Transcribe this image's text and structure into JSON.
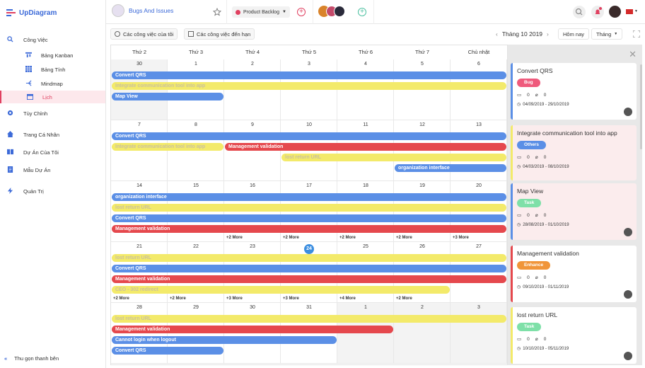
{
  "app": {
    "name": "UpDiagram",
    "project": "Bugs And Issues",
    "backlog": "Product Backlog"
  },
  "sidebar": {
    "items": [
      {
        "label": "Công Việc",
        "icon": "search-icon"
      },
      {
        "label": "Bảng Kanban",
        "icon": "kanban-icon"
      },
      {
        "label": "Bảng Tính",
        "icon": "grid-icon"
      },
      {
        "label": "Mindmap",
        "icon": "mindmap-icon"
      },
      {
        "label": "Lịch",
        "icon": "calendar-icon"
      },
      {
        "label": "Tùy Chỉnh",
        "icon": "gear-icon"
      },
      {
        "label": "Trang Cá Nhân",
        "icon": "home-icon"
      },
      {
        "label": "Dự Án Của Tôi",
        "icon": "book-icon"
      },
      {
        "label": "Mẫu Dự Án",
        "icon": "template-icon"
      },
      {
        "label": "Quản Trị",
        "icon": "bolt-icon"
      }
    ],
    "collapse": "Thu gọn thanh bên",
    "collapse_icon": "«"
  },
  "toolbar": {
    "my_tasks": "Các công việc của tôi",
    "due_tasks": "Các công việc đến hạn",
    "month": "Tháng 10 2019",
    "today": "Hôm nay",
    "view": "Tháng"
  },
  "calendar": {
    "dow": [
      "Thứ 2",
      "Thứ 3",
      "Thứ 4",
      "Thứ 5",
      "Thứ 6",
      "Thứ 7",
      "Chủ nhật"
    ],
    "weeks": [
      [
        "30",
        "1",
        "2",
        "3",
        "4",
        "5",
        "6"
      ],
      [
        "7",
        "8",
        "9",
        "10",
        "11",
        "12",
        "13"
      ],
      [
        "14",
        "15",
        "16",
        "17",
        "18",
        "19",
        "20"
      ],
      [
        "21",
        "22",
        "23",
        "24",
        "25",
        "26",
        "27"
      ],
      [
        "28",
        "29",
        "30",
        "31",
        "1",
        "2",
        "3"
      ]
    ],
    "today": "24",
    "events": [
      {
        "w": 0,
        "r": 0,
        "s": 0,
        "e": 6,
        "t": "Convert QRS",
        "c": "#5b8fe6"
      },
      {
        "w": 0,
        "r": 1,
        "s": 0,
        "e": 6,
        "t": "Integrate communication tool into app",
        "c": "#f3ea6a",
        "y": true
      },
      {
        "w": 0,
        "r": 2,
        "s": 0,
        "e": 1,
        "t": "Map View",
        "c": "#5b8fe6"
      },
      {
        "w": 1,
        "r": 0,
        "s": 0,
        "e": 6,
        "t": "Convert QRS",
        "c": "#5b8fe6"
      },
      {
        "w": 1,
        "r": 1,
        "s": 0,
        "e": 1,
        "t": "Integrate communication tool into app",
        "c": "#f3ea6a",
        "y": true
      },
      {
        "w": 1,
        "r": 1,
        "s": 2,
        "e": 6,
        "t": "Management validation",
        "c": "#e5484d"
      },
      {
        "w": 1,
        "r": 2,
        "s": 3,
        "e": 6,
        "t": "lost return URL",
        "c": "#f3ea6a",
        "y": true
      },
      {
        "w": 1,
        "r": 3,
        "s": 5,
        "e": 6,
        "t": "organization interface",
        "c": "#5b8fe6"
      },
      {
        "w": 2,
        "r": 0,
        "s": 0,
        "e": 6,
        "t": "organization interface",
        "c": "#5b8fe6"
      },
      {
        "w": 2,
        "r": 1,
        "s": 0,
        "e": 6,
        "t": "lost return URL",
        "c": "#f3ea6a",
        "y": true
      },
      {
        "w": 2,
        "r": 2,
        "s": 0,
        "e": 6,
        "t": "Convert QRS",
        "c": "#5b8fe6"
      },
      {
        "w": 2,
        "r": 3,
        "s": 0,
        "e": 6,
        "t": "Management validation",
        "c": "#e5484d"
      },
      {
        "w": 3,
        "r": 0,
        "s": 0,
        "e": 6,
        "t": "lost return URL",
        "c": "#f3ea6a",
        "y": true
      },
      {
        "w": 3,
        "r": 1,
        "s": 0,
        "e": 6,
        "t": "Convert QRS",
        "c": "#5b8fe6"
      },
      {
        "w": 3,
        "r": 2,
        "s": 0,
        "e": 6,
        "t": "Management validation",
        "c": "#e5484d"
      },
      {
        "w": 3,
        "r": 3,
        "s": 0,
        "e": 5,
        "t": "CEO - 302 redirect",
        "c": "#f3ea6a",
        "y": true
      },
      {
        "w": 4,
        "r": 0,
        "s": 0,
        "e": 6,
        "t": "lost return URL",
        "c": "#f3ea6a",
        "y": true
      },
      {
        "w": 4,
        "r": 1,
        "s": 0,
        "e": 4,
        "t": "Management validation",
        "c": "#e5484d"
      },
      {
        "w": 4,
        "r": 2,
        "s": 0,
        "e": 3,
        "t": "Cannot login when logout",
        "c": "#5b8fe6"
      },
      {
        "w": 4,
        "r": 3,
        "s": 0,
        "e": 1,
        "t": "Convert QRS",
        "c": "#5b8fe6"
      }
    ],
    "mores": [
      {
        "w": 2,
        "d": 2,
        "t": "+2 More"
      },
      {
        "w": 2,
        "d": 3,
        "t": "+2 More"
      },
      {
        "w": 2,
        "d": 4,
        "t": "+2 More"
      },
      {
        "w": 2,
        "d": 5,
        "t": "+2 More"
      },
      {
        "w": 2,
        "d": 6,
        "t": "+3 More"
      },
      {
        "w": 3,
        "d": 0,
        "t": "+2 More"
      },
      {
        "w": 3,
        "d": 1,
        "t": "+2 More"
      },
      {
        "w": 3,
        "d": 2,
        "t": "+3 More"
      },
      {
        "w": 3,
        "d": 3,
        "t": "+3 More"
      },
      {
        "w": 3,
        "d": 4,
        "t": "+4 More"
      },
      {
        "w": 3,
        "d": 5,
        "t": "+2 More"
      }
    ]
  },
  "cards": [
    {
      "title": "Convert QRS",
      "tag": "Bug",
      "tagc": "#ef5a7c",
      "bc": "#5b8fe6",
      "c": "0",
      "a": "0",
      "date": "04/09/2019 - 29/10/2019",
      "pink": false
    },
    {
      "title": "Integrate communication tool into app",
      "tag": "Others",
      "tagc": "#5b8fe6",
      "bc": "#f3ea6a",
      "c": "0",
      "a": "0",
      "date": "04/03/2019 - 08/10/2019",
      "pink": true
    },
    {
      "title": "Map View",
      "tag": "Task",
      "tagc": "#7ee0a8",
      "bc": "#5b8fe6",
      "c": "0",
      "a": "0",
      "date": "28/08/2019 - 01/10/2019",
      "pink": true
    },
    {
      "title": "Management validation",
      "tag": "Enhance",
      "tagc": "#f0953a",
      "bc": "#e5484d",
      "c": "0",
      "a": "0",
      "date": "09/10/2019 - 01/11/2019",
      "pink": false
    },
    {
      "title": "lost return URL",
      "tag": "Task",
      "tagc": "#7ee0a8",
      "bc": "#f3ea6a",
      "c": "0",
      "a": "0",
      "date": "10/10/2019 - 05/11/2019",
      "pink": false
    }
  ]
}
